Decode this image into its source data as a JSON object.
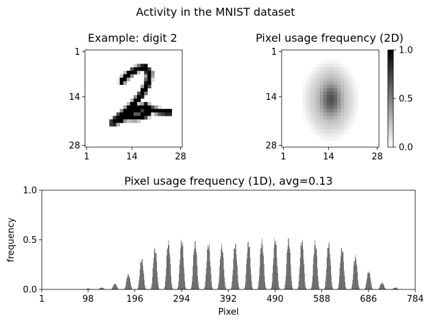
{
  "figure": {
    "suptitle": "Activity in the MNIST dataset"
  },
  "colors": {
    "bar": "#4a4a4a",
    "ink": "#000000",
    "background": "#ffffff"
  },
  "chart_data": [
    {
      "id": "example-digit",
      "type": "heatmap",
      "title": "Example: digit 2",
      "grid_size": [
        28,
        28
      ],
      "colormap": "gray_r",
      "description_value": "handwritten digit 2",
      "x_ticks": [
        "1",
        "14",
        "28"
      ],
      "y_ticks": [
        "1",
        "14",
        "28"
      ],
      "strokes": [
        [
          [
            10.6,
            9.0
          ],
          [
            12.5,
            7.0
          ],
          [
            15.0,
            5.5
          ],
          [
            17.2,
            5.0
          ],
          [
            18.6,
            6.8
          ],
          [
            18.2,
            9.5
          ],
          [
            16.5,
            12.5
          ],
          [
            14.5,
            15.0
          ],
          [
            12.0,
            17.5
          ],
          [
            9.5,
            19.5
          ],
          [
            8.0,
            21.0
          ]
        ],
        [
          [
            8.0,
            21.0
          ],
          [
            10.5,
            20.0
          ],
          [
            13.0,
            18.4
          ],
          [
            15.5,
            17.0
          ],
          [
            17.6,
            16.1
          ],
          [
            18.6,
            17.2
          ],
          [
            17.8,
            18.6
          ],
          [
            15.0,
            19.5
          ],
          [
            12.0,
            19.4
          ]
        ],
        [
          [
            12.5,
            16.6
          ],
          [
            15.5,
            16.6
          ],
          [
            18.5,
            17.1
          ],
          [
            21.5,
            17.7
          ],
          [
            24.2,
            17.9
          ]
        ]
      ]
    },
    {
      "id": "usage-2d",
      "type": "heatmap",
      "title": "Pixel usage frequency (2D)",
      "grid_size": [
        28,
        28
      ],
      "colormap": "gray_r",
      "value_range": [
        0.0,
        1.0
      ],
      "peak_value": 0.55,
      "x_ticks": [
        "1",
        "14",
        "28"
      ],
      "y_ticks": [
        "1",
        "14",
        "28"
      ],
      "colorbar_ticks": [
        "0.0",
        "0.5",
        "1.0"
      ]
    },
    {
      "id": "usage-1d",
      "type": "bar",
      "title": "Pixel usage frequency (1D), avg=0.13",
      "xlabel": "Pixel",
      "ylabel": "frequency",
      "xlim": [
        1,
        784
      ],
      "ylim": [
        0.0,
        1.0
      ],
      "x_ticks": [
        "1",
        "98",
        "196",
        "294",
        "392",
        "490",
        "588",
        "686",
        "784"
      ],
      "y_ticks": [
        "0.0",
        "0.5",
        "1.0"
      ],
      "n_bars": 784,
      "average": 0.13,
      "row_peaks": [
        0.0,
        0.0,
        0.0,
        0.01,
        0.02,
        0.06,
        0.16,
        0.32,
        0.43,
        0.5,
        0.52,
        0.5,
        0.48,
        0.46,
        0.48,
        0.5,
        0.51,
        0.53,
        0.53,
        0.52,
        0.5,
        0.49,
        0.44,
        0.35,
        0.19,
        0.07,
        0.02,
        0.0
      ]
    }
  ]
}
